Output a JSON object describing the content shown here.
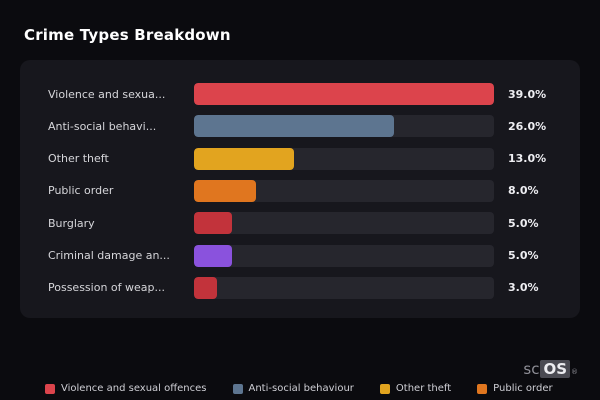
{
  "page": {
    "title": "Crime Types Breakdown"
  },
  "chart_data": {
    "type": "bar",
    "orientation": "horizontal",
    "title": "Crime Types Breakdown",
    "categories": [
      "Violence and sexua...",
      "Anti-social behavi...",
      "Other theft",
      "Public order",
      "Burglary",
      "Criminal damage an...",
      "Possession of weap..."
    ],
    "values": [
      39.0,
      26.0,
      13.0,
      8.0,
      5.0,
      5.0,
      3.0
    ],
    "value_labels": [
      "39.0%",
      "26.0%",
      "13.0%",
      "8.0%",
      "5.0%",
      "5.0%",
      "3.0%"
    ],
    "bar_colors": [
      "#dc444c",
      "#5d7590",
      "#e2a41f",
      "#e0761f",
      "#c2333b",
      "#8a52dd",
      "#c2333b"
    ],
    "max_value": 39,
    "xlim": [
      0,
      39
    ],
    "grid": false,
    "legend_position": "bottom"
  },
  "legend": {
    "items": [
      {
        "label": "Violence and sexual offences",
        "color": "#dc444c"
      },
      {
        "label": "Anti-social behaviour",
        "color": "#5d7590"
      },
      {
        "label": "Other theft",
        "color": "#e2a41f"
      },
      {
        "label": "Public order",
        "color": "#e0761f"
      }
    ]
  },
  "watermark": {
    "prefix": "sc",
    "os": "OS",
    "reg": "®"
  }
}
